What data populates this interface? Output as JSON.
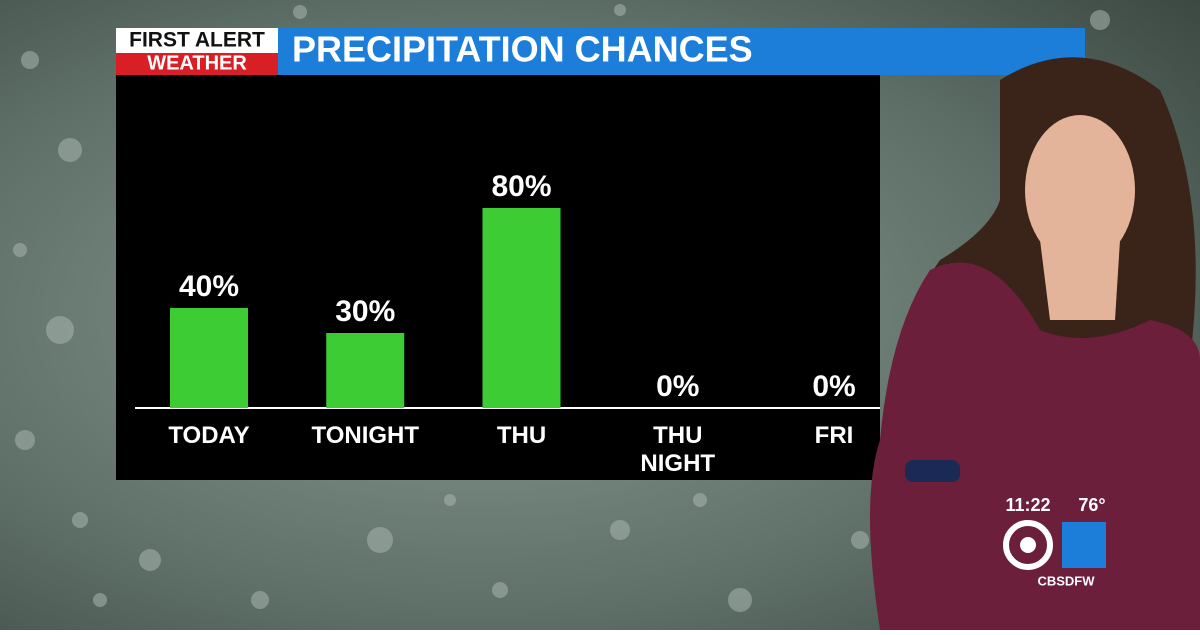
{
  "chart_data": {
    "type": "bar",
    "title": "PRECIPITATION CHANCES",
    "categories": [
      "TODAY",
      "TONIGHT",
      "THU",
      "THU NIGHT",
      "FRI"
    ],
    "values": [
      40,
      30,
      80,
      0,
      0
    ],
    "value_labels": [
      "40%",
      "30%",
      "80%",
      "0%",
      "0%"
    ],
    "color": "#3dcc34",
    "ylim": [
      0,
      100
    ]
  },
  "broadcast": {
    "badge_line1": "FIRST ALERT",
    "badge_line2": "WEATHER",
    "time": "11:22",
    "temperature": "76°",
    "social": "CBSDFW"
  }
}
